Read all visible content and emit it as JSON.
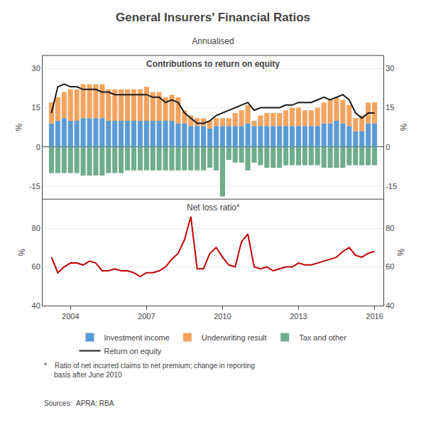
{
  "title": "General Insurers’ Financial Ratios",
  "subtitle": "Annualised",
  "annotations": [
    "*    Ratio of net incurred claims to net premium; change in reporting\n     basis after June 2010",
    "Sources:  APRA; RBA"
  ],
  "chart_data": [
    {
      "type": "bar",
      "title": "Contributions to return on equity",
      "x": [
        2003.25,
        2003.5,
        2003.75,
        2004.0,
        2004.25,
        2004.5,
        2004.75,
        2005.0,
        2005.25,
        2005.5,
        2005.75,
        2006.0,
        2006.25,
        2006.5,
        2006.75,
        2007.0,
        2007.25,
        2007.5,
        2007.75,
        2008.0,
        2008.25,
        2008.5,
        2008.75,
        2009.0,
        2009.25,
        2009.5,
        2009.75,
        2010.0,
        2010.25,
        2010.5,
        2010.75,
        2011.0,
        2011.25,
        2011.5,
        2011.75,
        2012.0,
        2012.25,
        2012.5,
        2012.75,
        2013.0,
        2013.25,
        2013.5,
        2013.75,
        2014.0,
        2014.25,
        2014.5,
        2014.75,
        2015.0,
        2015.25,
        2015.5,
        2015.75,
        2016.0
      ],
      "xlim": [
        2002.9,
        2016.35
      ],
      "ylim": [
        -20,
        35
      ],
      "yticks": [
        -15,
        0,
        15,
        30
      ],
      "y2lim": [
        -20,
        35
      ],
      "y2ticks": [
        -15,
        0,
        15,
        30
      ],
      "ylabel": "%",
      "y2label": "%",
      "stacked": true,
      "grid": true,
      "legend": "bottom",
      "tick_labels": "y",
      "series": [
        {
          "name": "Investment income",
          "color": "#5B9BD5",
          "values": [
            9,
            10,
            11,
            10,
            10,
            11,
            11,
            11,
            11,
            10,
            10,
            10,
            10,
            10,
            10,
            10,
            10,
            10,
            10,
            10,
            9,
            9,
            8,
            8,
            8,
            7,
            8,
            8,
            8,
            8,
            8,
            9,
            8,
            8,
            8,
            8,
            8,
            8,
            8,
            8,
            8,
            8,
            8,
            9,
            9,
            10,
            9,
            8,
            6,
            6,
            9,
            9
          ]
        },
        {
          "name": "Underwriting result",
          "color": "#F4A460",
          "values": [
            8,
            9,
            10,
            12,
            12,
            13,
            13,
            13,
            13,
            12,
            12,
            12,
            12,
            12,
            12,
            13,
            11,
            11,
            9,
            10,
            10,
            5,
            4,
            3,
            3,
            3,
            3,
            3,
            3,
            5,
            6,
            7,
            2,
            4,
            5,
            5,
            5,
            6,
            7,
            7,
            6,
            6,
            7,
            8,
            9,
            9,
            9,
            8,
            5,
            6,
            8,
            8
          ]
        },
        {
          "name": "Tax and other",
          "color": "#70AD8A",
          "values": [
            -10,
            -10,
            -10,
            -10,
            -10,
            -11,
            -11,
            -11,
            -11,
            -10,
            -10,
            -10,
            -9,
            -9,
            -9,
            -9,
            -9,
            -9,
            -9,
            -9,
            -9,
            -9,
            -9,
            -9,
            -9,
            -8,
            -9,
            -19,
            -5,
            -6,
            -6,
            -9,
            -6,
            -7,
            -8,
            -8,
            -8,
            -7,
            -7,
            -7,
            -7,
            -7,
            -7,
            -8,
            -8,
            -8,
            -8,
            -7,
            -7,
            -7,
            -7,
            -7
          ]
        },
        {
          "name": "Return on equity",
          "type": "line",
          "color": "#1A1A1A",
          "values": [
            13,
            23,
            24,
            23,
            23,
            22,
            22,
            22,
            21,
            21,
            20,
            20,
            20,
            20,
            20,
            20,
            19,
            19,
            17,
            18,
            17,
            13,
            11,
            9,
            9,
            10,
            12,
            13,
            14,
            15,
            16,
            17,
            14,
            15,
            15,
            15,
            15,
            16,
            16,
            17,
            17,
            17,
            18,
            19,
            18,
            19,
            20,
            18,
            13,
            11,
            13,
            13
          ]
        }
      ]
    },
    {
      "type": "line",
      "title": "Net loss ratio*",
      "x": [
        2003.25,
        2003.5,
        2003.75,
        2004.0,
        2004.25,
        2004.5,
        2004.75,
        2005.0,
        2005.25,
        2005.5,
        2005.75,
        2006.0,
        2006.25,
        2006.5,
        2006.75,
        2007.0,
        2007.25,
        2007.5,
        2007.75,
        2008.0,
        2008.25,
        2008.5,
        2008.75,
        2009.0,
        2009.25,
        2009.5,
        2009.75,
        2010.0,
        2010.25,
        2010.5,
        2010.75,
        2011.0,
        2011.25,
        2011.5,
        2011.75,
        2012.0,
        2012.25,
        2012.5,
        2012.75,
        2013.0,
        2013.25,
        2013.5,
        2013.75,
        2014.0,
        2014.25,
        2014.5,
        2014.75,
        2015.0,
        2015.25,
        2015.5,
        2015.75,
        2016.0
      ],
      "values": [
        65,
        57,
        60,
        62,
        62,
        61,
        63,
        62,
        58,
        58,
        59,
        58,
        58,
        57,
        55,
        57,
        57,
        58,
        60,
        64,
        67,
        74,
        86,
        59,
        59,
        67,
        70,
        65,
        61,
        60,
        73,
        77,
        60,
        59,
        60,
        58,
        59,
        60,
        60,
        62,
        61,
        61,
        62,
        63,
        64,
        65,
        68,
        70,
        66,
        65,
        67,
        68
      ],
      "color": "#C00000",
      "xlim": [
        2002.9,
        2016.35
      ],
      "xticks": [
        2004,
        2007,
        2010,
        2013,
        2016
      ],
      "ylim": [
        40,
        95
      ],
      "yticks": [
        40,
        60,
        80
      ],
      "y2lim": [
        40,
        95
      ],
      "y2ticks": [
        40,
        60,
        80
      ],
      "ylabel": "%",
      "y2label": "%",
      "grid": true
    }
  ]
}
